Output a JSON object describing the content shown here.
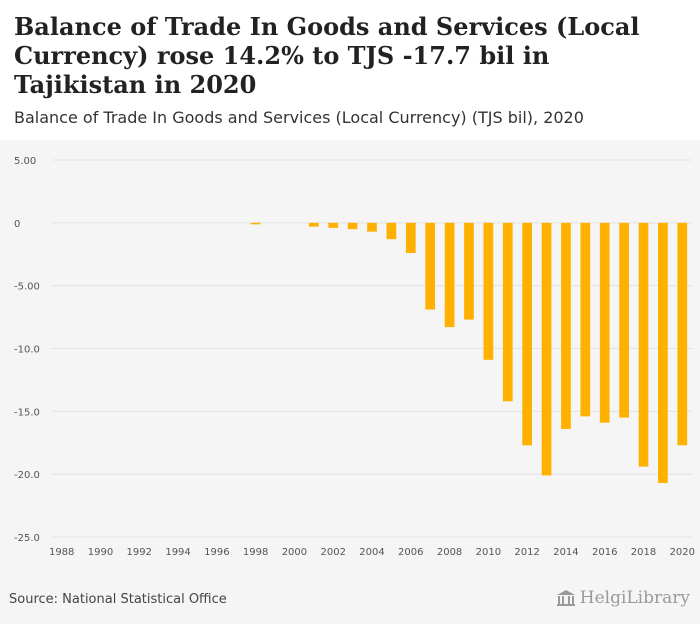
{
  "header": {
    "title": "Balance of Trade In Goods and Services (Local Currency) rose 14.2% to TJS -17.7 bil in Tajikistan in 2020",
    "subtitle": "Balance of Trade In Goods and Services (Local Currency) (TJS bil), 2020"
  },
  "footer": {
    "source": "Source: National Statistical Office",
    "brand": "HelgiLibrary",
    "brand_icon": "library-building-icon"
  },
  "colors": {
    "bar": "#FFB000",
    "grid": "#e2e2e2",
    "plot_background": "#f5f5f5",
    "tick_text": "#555555"
  },
  "chart_data": {
    "type": "bar",
    "title": "",
    "xlabel": "",
    "ylabel": "",
    "ylim": [
      -25,
      5
    ],
    "y_ticks": [
      5,
      0,
      -5,
      -10,
      -15,
      -20,
      -25
    ],
    "y_tick_labels": [
      "5.00",
      "0",
      "-5.00",
      "-10.0",
      "-15.0",
      "-20.0",
      "-25.0"
    ],
    "x_tick_labels": [
      "1988",
      "1990",
      "1992",
      "1994",
      "1996",
      "1998",
      "2000",
      "2002",
      "2004",
      "2006",
      "2008",
      "2010",
      "2012",
      "2014",
      "2016",
      "2018",
      "2020"
    ],
    "grid": true,
    "legend": "none",
    "categories": [
      "1988",
      "1989",
      "1990",
      "1991",
      "1992",
      "1993",
      "1994",
      "1995",
      "1996",
      "1997",
      "1998",
      "1999",
      "2000",
      "2001",
      "2002",
      "2003",
      "2004",
      "2005",
      "2006",
      "2007",
      "2008",
      "2009",
      "2010",
      "2011",
      "2012",
      "2013",
      "2014",
      "2015",
      "2016",
      "2017",
      "2018",
      "2019",
      "2020"
    ],
    "values": [
      null,
      null,
      null,
      null,
      null,
      null,
      null,
      null,
      null,
      null,
      -0.1,
      null,
      null,
      -0.3,
      -0.4,
      -0.5,
      -0.7,
      -1.3,
      -2.4,
      -6.9,
      -8.3,
      -7.7,
      -10.9,
      -14.2,
      -17.7,
      -20.1,
      -16.4,
      -15.4,
      -15.9,
      -15.5,
      -19.4,
      -20.7,
      -17.7
    ]
  }
}
